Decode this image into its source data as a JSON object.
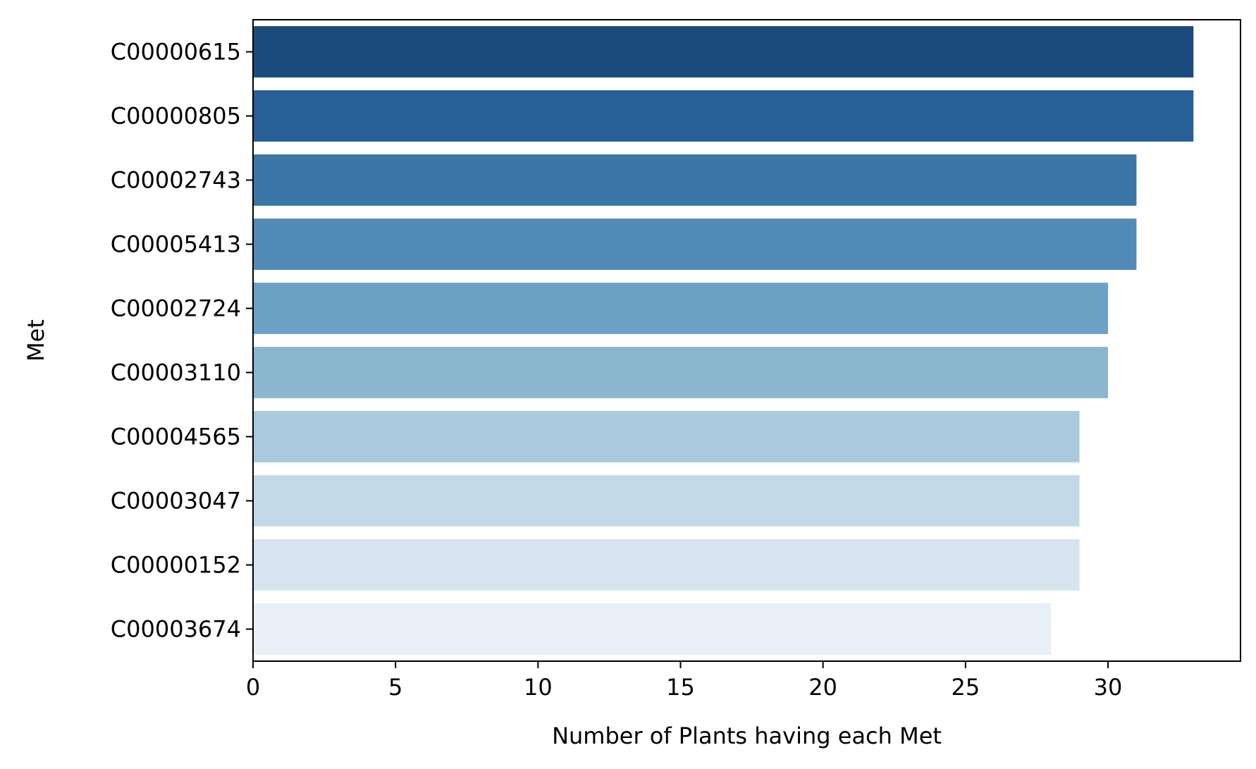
{
  "chart_data": {
    "type": "bar",
    "orientation": "horizontal",
    "title": "",
    "xlabel": "Number of Plants having each Met",
    "ylabel": "Met",
    "xlim": [
      0,
      34.65
    ],
    "xticks": [
      0,
      5,
      10,
      15,
      20,
      25,
      30
    ],
    "grid": false,
    "legend": "none",
    "categories": [
      "C00000615",
      "C00000805",
      "C00002743",
      "C00005413",
      "C00002724",
      "C00003110",
      "C00004565",
      "C00003047",
      "C00000152",
      "C00003674"
    ],
    "values": [
      33,
      33,
      31,
      31,
      30,
      30,
      29,
      29,
      29,
      28
    ],
    "colors": [
      "#1b4a7f",
      "#266097",
      "#3a76a8",
      "#518cb8",
      "#6ba1c5",
      "#8ab6d0",
      "#a9c9dc",
      "#c4d9e8",
      "#d7e3ef",
      "#e8eff8"
    ]
  }
}
